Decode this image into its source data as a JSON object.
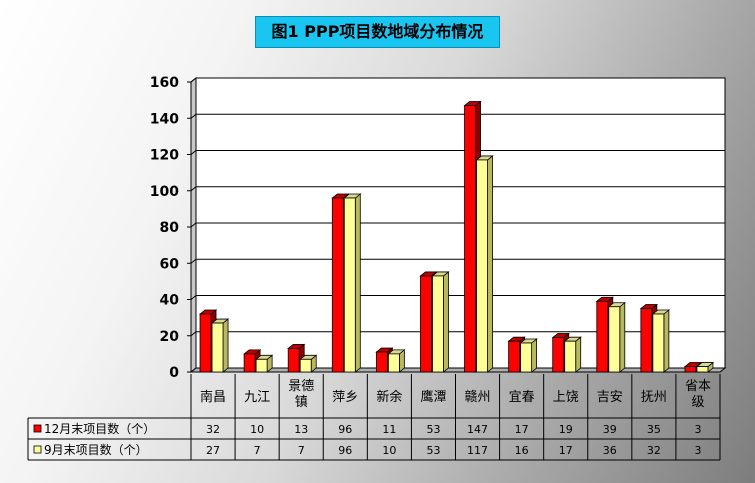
{
  "title": "图1 PPP项目数地域分布情况",
  "colors": {
    "series1": "#ff0000",
    "series2": "#ffff99",
    "title_bg": "#19c6f2"
  },
  "chart_data": {
    "type": "bar",
    "title": "图1 PPP项目数地域分布情况",
    "categories": [
      "南昌",
      "九江",
      "景德镇",
      "萍乡",
      "新余",
      "鹰潭",
      "赣州",
      "宜春",
      "上饶",
      "吉安",
      "抚州",
      "省本级"
    ],
    "category_labels": [
      [
        "南昌"
      ],
      [
        "九江"
      ],
      [
        "景德",
        "镇"
      ],
      [
        "萍乡"
      ],
      [
        "新余"
      ],
      [
        "鹰潭"
      ],
      [
        "赣州"
      ],
      [
        "宜春"
      ],
      [
        "上饶"
      ],
      [
        "吉安"
      ],
      [
        "抚州"
      ],
      [
        "省本",
        "级"
      ]
    ],
    "series": [
      {
        "name": "12月末项目数（个）",
        "values": [
          32,
          10,
          13,
          96,
          11,
          53,
          147,
          17,
          19,
          39,
          35,
          3
        ]
      },
      {
        "name": "9月末项目数（个）",
        "values": [
          27,
          7,
          7,
          96,
          10,
          53,
          117,
          16,
          17,
          36,
          32,
          3
        ]
      }
    ],
    "ylim": [
      0,
      160
    ],
    "yticks": [
      0,
      20,
      40,
      60,
      80,
      100,
      120,
      140,
      160
    ],
    "grid": true,
    "legend": "data-table",
    "xlabel": "",
    "ylabel": ""
  }
}
